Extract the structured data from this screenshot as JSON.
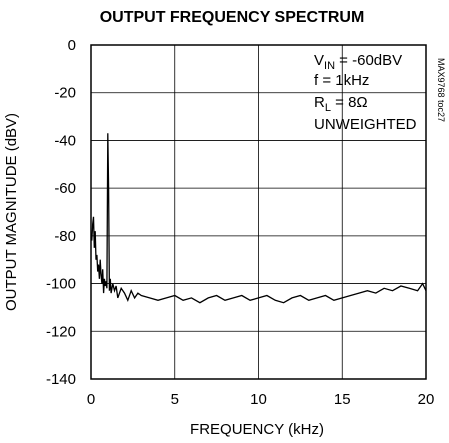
{
  "chart_data": {
    "type": "line",
    "title": "OUTPUT FREQUENCY SPECTRUM",
    "xlabel": "FREQUENCY (kHz)",
    "ylabel": "OUTPUT MAGNITUDE (dBV)",
    "xlim": [
      0,
      20
    ],
    "ylim": [
      -140,
      0
    ],
    "xticks": [
      0,
      5,
      10,
      15,
      20
    ],
    "yticks": [
      0,
      -20,
      -40,
      -60,
      -80,
      -100,
      -120,
      -140
    ],
    "grid": true,
    "annotation": {
      "vin_main": "V",
      "vin_sub": "IN",
      "vin_rest": " = -60dBV",
      "f_line": "f = 1kHz",
      "rl_main": "R",
      "rl_sub": "L",
      "rl_rest": " = 8Ω",
      "weighting": "UNWEIGHTED"
    },
    "side_tag": "MAX9768 toc27",
    "series": [
      {
        "x": [
          0.05,
          0.1,
          0.15,
          0.2,
          0.25,
          0.3,
          0.35,
          0.4,
          0.45,
          0.5,
          0.55,
          0.6,
          0.65,
          0.7,
          0.75,
          0.8,
          0.85,
          0.9,
          0.95,
          1.0,
          1.05,
          1.1,
          1.15,
          1.2,
          1.3,
          1.4,
          1.5,
          1.6,
          1.8,
          2.0,
          2.2,
          2.4,
          2.6,
          2.8,
          3.0,
          3.5,
          4.0,
          4.5,
          5.0,
          5.5,
          6.0,
          6.5,
          7.0,
          7.5,
          8.0,
          8.5,
          9.0,
          9.5,
          10.0,
          10.5,
          11.0,
          11.5,
          12.0,
          12.5,
          13.0,
          13.5,
          14.0,
          14.5,
          15.0,
          15.5,
          16.0,
          16.5,
          17.0,
          17.5,
          18.0,
          18.5,
          19.0,
          19.5,
          19.8,
          20.0
        ],
        "y": [
          -82,
          -75,
          -72,
          -85,
          -78,
          -90,
          -88,
          -95,
          -92,
          -98,
          -90,
          -96,
          -100,
          -94,
          -104,
          -98,
          -101,
          -99,
          -102,
          -37,
          -60,
          -103,
          -98,
          -104,
          -100,
          -103,
          -101,
          -106,
          -102,
          -104,
          -107,
          -103,
          -106,
          -104,
          -105,
          -106,
          -107,
          -106,
          -105,
          -107,
          -106,
          -108,
          -106,
          -105,
          -107,
          -106,
          -105,
          -107,
          -106,
          -105,
          -107,
          -108,
          -106,
          -105,
          -107,
          -106,
          -105,
          -107,
          -106,
          -105,
          -104,
          -103,
          -104,
          -102,
          -103,
          -101,
          -102,
          -103,
          -100,
          -103
        ]
      }
    ]
  }
}
